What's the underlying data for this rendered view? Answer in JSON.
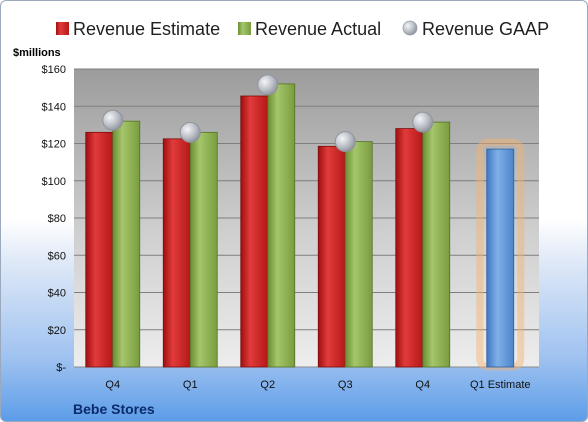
{
  "company": "Bebe Stores",
  "colors": {
    "estimate": "#d42a2a",
    "actual": "#8db250",
    "gaap": "#b8bcc4",
    "forecast": "#5f97d6",
    "highlight": "#f6b26b"
  },
  "chart_data": {
    "type": "bar",
    "ylabel": "$millions",
    "ylim": [
      0,
      160
    ],
    "yticks": [
      0,
      20,
      40,
      60,
      80,
      100,
      120,
      140,
      160
    ],
    "ytick_labels": [
      "$-",
      "$20",
      "$40",
      "$60",
      "$80",
      "$100",
      "$120",
      "$140",
      "$160"
    ],
    "categories": [
      "Q4",
      "Q1",
      "Q2",
      "Q3",
      "Q4",
      "Q1 Estimate"
    ],
    "legend_position": "top",
    "grid": true,
    "series": [
      {
        "name": "Revenue Estimate",
        "kind": "bar",
        "values": [
          126,
          122.5,
          145.5,
          118.5,
          128,
          117
        ],
        "highlight_last": true
      },
      {
        "name": "Revenue Actual",
        "kind": "bar",
        "values": [
          132,
          126,
          152,
          121,
          131.5,
          null
        ]
      },
      {
        "name": "Revenue GAAP",
        "kind": "marker",
        "values": [
          132.5,
          126,
          151.5,
          121,
          131.5,
          null
        ]
      }
    ]
  }
}
